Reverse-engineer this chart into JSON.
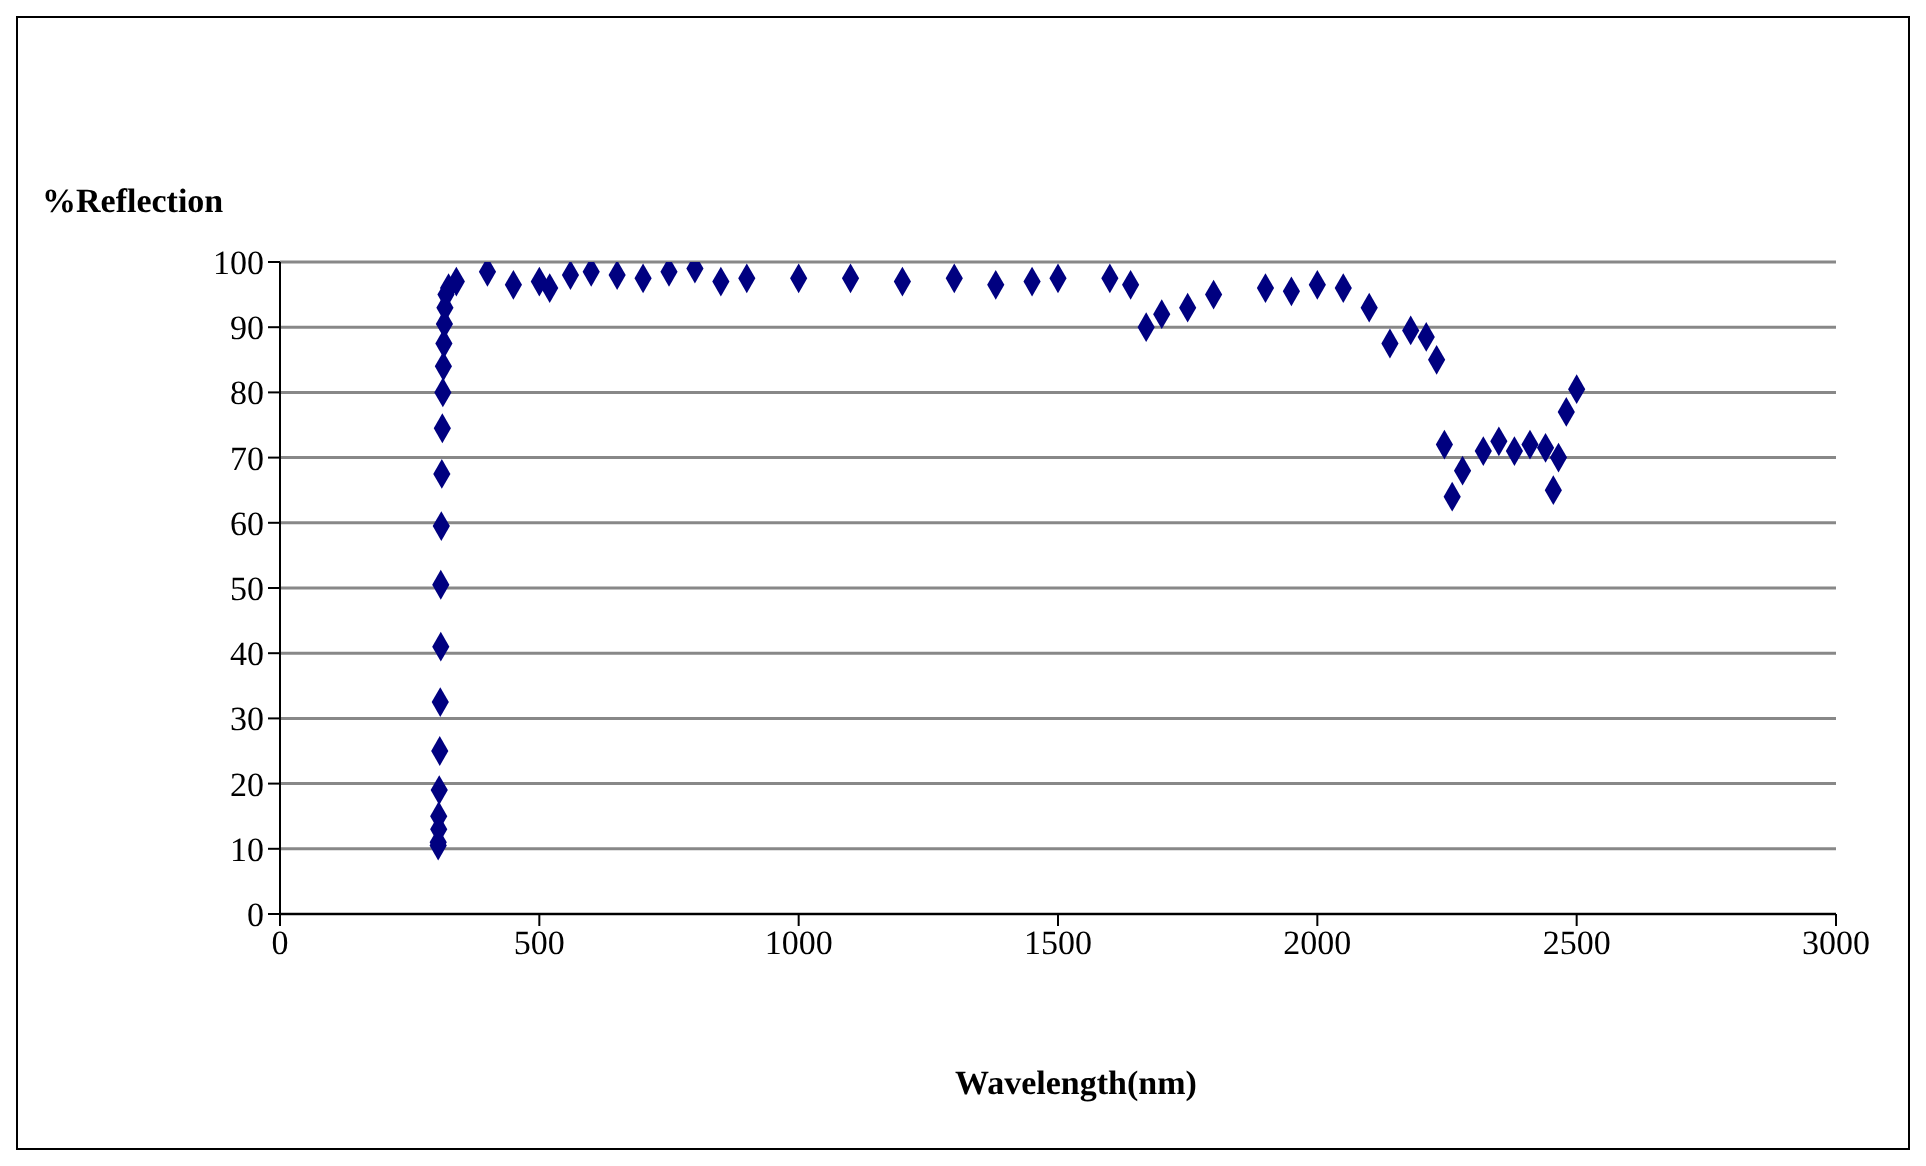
{
  "chart_data": {
    "type": "scatter",
    "xlabel": "Wavelength(nm)",
    "ylabel": "%Reflection",
    "x": [
      305,
      305,
      306,
      306,
      307,
      308,
      309,
      310,
      310,
      311,
      312,
      313,
      314,
      315,
      316,
      317,
      318,
      320,
      325,
      340,
      400,
      450,
      500,
      520,
      560,
      600,
      650,
      700,
      750,
      800,
      850,
      900,
      1000,
      1100,
      1200,
      1300,
      1380,
      1450,
      1500,
      1600,
      1640,
      1670,
      1700,
      1750,
      1800,
      1900,
      1950,
      2000,
      2050,
      2100,
      2140,
      2180,
      2210,
      2230,
      2245,
      2260,
      2280,
      2320,
      2350,
      2380,
      2410,
      2440,
      2455,
      2465,
      2480,
      2500
    ],
    "series": [
      {
        "color": "#000080",
        "values": [
          10.5,
          11,
          13,
          15,
          19,
          25,
          32.5,
          41,
          50.5,
          59.5,
          67.5,
          74.5,
          80,
          84,
          87.5,
          90.5,
          93,
          95,
          96,
          97,
          98.5,
          96.5,
          97,
          96,
          98,
          98.5,
          98,
          97.5,
          98.5,
          99,
          97,
          97.5,
          97.5,
          97.5,
          97,
          97.5,
          96.5,
          97,
          97.5,
          97.5,
          96.5,
          90,
          92,
          93,
          95,
          96,
          95.5,
          96.5,
          96,
          93,
          87.5,
          89.5,
          88.5,
          85,
          72,
          64,
          68,
          71,
          72.5,
          71,
          72,
          71.5,
          65,
          70,
          77,
          80.5
        ]
      }
    ],
    "xlim": [
      0,
      3000
    ],
    "xticks": [
      0,
      500,
      1000,
      1500,
      2000,
      2500,
      3000
    ],
    "ylim": [
      0,
      100
    ],
    "yticks": [
      0,
      10,
      20,
      30,
      40,
      50,
      60,
      70,
      80,
      90,
      100
    ],
    "grid": "y",
    "marker": "diamond"
  }
}
